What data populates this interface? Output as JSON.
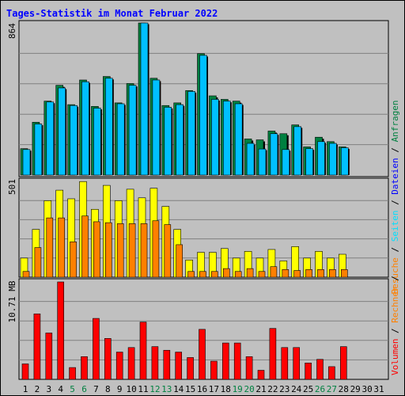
{
  "page": {
    "title": "Tages-Statistik im Monat Februar 2022"
  },
  "legend": {
    "volumen": "Volumen",
    "rechner": "Rechner",
    "besuche": "Besuche",
    "seiten": "Seiten",
    "dateien": "Dateien",
    "anfragen": "Anfragen",
    "sep": "/"
  },
  "panels": {
    "top": {
      "max_label": "864"
    },
    "mid": {
      "max_label": "501"
    },
    "bot": {
      "max_label": "10.71 MB"
    }
  },
  "colors": {
    "background": "#c0c0c0",
    "title": "#0000ff",
    "anfragen": "#008040",
    "dateien": "#00c0ff",
    "seiten": "#00e0ff",
    "besuche": "#ffff00",
    "rechner": "#ff8000",
    "volumen": "#ff0000",
    "weekend_day": "#008040",
    "weekday": "#000000",
    "grid": "#808080"
  },
  "chart_data": {
    "type": "bar",
    "title": "Tages-Statistik im Monat Februar 2022",
    "categories": [
      "1",
      "2",
      "3",
      "4",
      "5",
      "6",
      "7",
      "8",
      "9",
      "10",
      "11",
      "12",
      "13",
      "14",
      "15",
      "16",
      "17",
      "18",
      "19",
      "20",
      "21",
      "22",
      "23",
      "24",
      "25",
      "26",
      "27",
      "28",
      "29",
      "30",
      "31"
    ],
    "weekend_days": [
      "5",
      "6",
      "12",
      "13",
      "19",
      "20",
      "26",
      "27"
    ],
    "panels": [
      {
        "name": "top",
        "ylim": [
          0,
          864
        ],
        "series": [
          {
            "name": "Anfragen",
            "values": [
              150,
              300,
              420,
              510,
              400,
              540,
              390,
              560,
              410,
              520,
              864,
              550,
              395,
              410,
              480,
              690,
              450,
              430,
              420,
              205,
              200,
              250,
              235,
              285,
              160,
              215,
              190,
              160,
              null,
              null,
              null
            ]
          },
          {
            "name": "Dateien",
            "values": [
              145,
              290,
              415,
              495,
              395,
              530,
              380,
              550,
              405,
              510,
              864,
              540,
              385,
              400,
              475,
              680,
              430,
              420,
              405,
              180,
              148,
              235,
              145,
              275,
              150,
              190,
              180,
              155,
              null,
              null,
              null
            ]
          }
        ]
      },
      {
        "name": "mid",
        "ylim": [
          0,
          501
        ],
        "series": [
          {
            "name": "Besuche",
            "values": [
              100,
              250,
              400,
              455,
              410,
              500,
              355,
              480,
              400,
              460,
              415,
              465,
              370,
              250,
              90,
              130,
              130,
              150,
              100,
              135,
              100,
              145,
              85,
              160,
              100,
              135,
              100,
              120,
              null,
              null,
              null
            ]
          },
          {
            "name": "Rechner",
            "values": [
              30,
              155,
              310,
              310,
              185,
              320,
              290,
              285,
              280,
              280,
              280,
              295,
              275,
              170,
              30,
              30,
              30,
              45,
              30,
              45,
              30,
              55,
              40,
              35,
              40,
              40,
              40,
              40,
              null,
              null,
              null
            ]
          }
        ]
      },
      {
        "name": "bot",
        "ylabel": "10.71 MB",
        "ylim": [
          0,
          10.71
        ],
        "series": [
          {
            "name": "Volumen",
            "values": [
              1.7,
              7.2,
              5.1,
              10.71,
              1.3,
              2.5,
              6.7,
              4.5,
              3.0,
              3.5,
              6.3,
              3.6,
              3.2,
              3.0,
              2.4,
              5.5,
              2.0,
              4.0,
              4.0,
              2.5,
              1.0,
              5.6,
              3.5,
              3.5,
              1.8,
              2.2,
              1.4,
              3.6,
              null,
              null,
              null
            ]
          }
        ]
      }
    ]
  }
}
